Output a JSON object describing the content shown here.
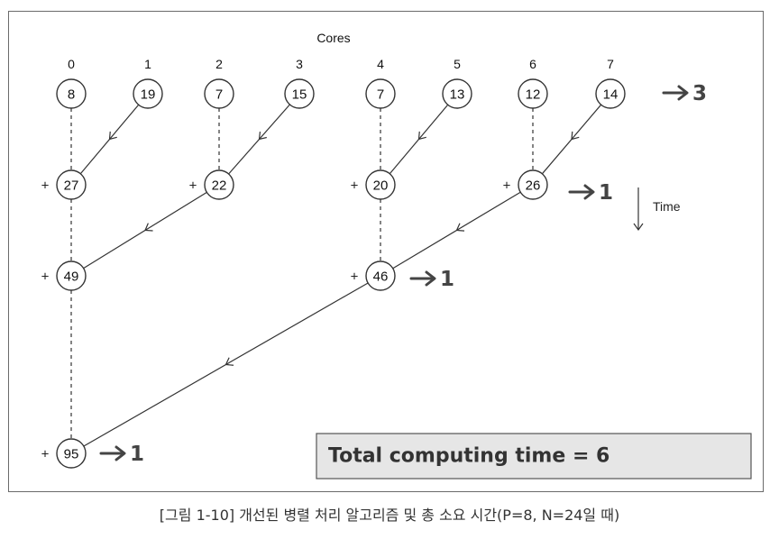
{
  "diagram": {
    "title": "Cores",
    "core_labels": [
      "0",
      "1",
      "2",
      "3",
      "4",
      "5",
      "6",
      "7"
    ],
    "level0_values": [
      "8",
      "19",
      "7",
      "15",
      "7",
      "13",
      "12",
      "14"
    ],
    "level1_values": [
      "27",
      "22",
      "20",
      "26"
    ],
    "level2_values": [
      "49",
      "46"
    ],
    "level3_values": [
      "95"
    ],
    "plus_sign": "+",
    "step_labels": {
      "level0": "3",
      "level1": "1",
      "level2": "1",
      "level3": "1"
    },
    "time_label": "Time",
    "total_label": "Total computing time = 6"
  },
  "caption": "[그림 1-10] 개선된 병렬 처리 알고리즘 및 총 소요 시간(P=8, N=24일 때)"
}
